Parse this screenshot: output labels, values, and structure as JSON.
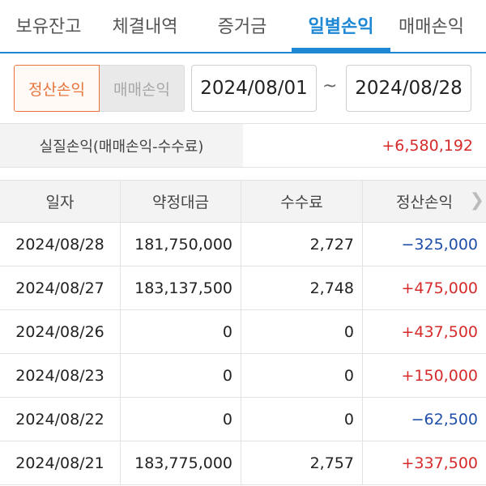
{
  "tabs": [
    {
      "label": "보유잔고",
      "active": false
    },
    {
      "label": "체결내역",
      "active": false
    },
    {
      "label": "증거금",
      "active": false
    },
    {
      "label": "일별손익",
      "active": true
    },
    {
      "label": "매매손익",
      "active": false
    }
  ],
  "filter": {
    "toggle_options": [
      "정산손익",
      "매매손익"
    ],
    "selected": "정산손익",
    "date_from": "2024/08/01",
    "separator": "~",
    "date_to": "2024/08/28"
  },
  "summary": {
    "label": "실질손익(매매손익-수수료)",
    "value": "+6,580,192"
  },
  "table": {
    "headers": [
      "일자",
      "약정대금",
      "수수료",
      "정산손익"
    ],
    "rows": [
      {
        "date": "2024/08/28",
        "amount": "181,750,000",
        "fee": "2,727",
        "pnl": "−325,000",
        "sign": "neg"
      },
      {
        "date": "2024/08/27",
        "amount": "183,137,500",
        "fee": "2,748",
        "pnl": "+475,000",
        "sign": "pos"
      },
      {
        "date": "2024/08/26",
        "amount": "0",
        "fee": "0",
        "pnl": "+437,500",
        "sign": "pos"
      },
      {
        "date": "2024/08/23",
        "amount": "0",
        "fee": "0",
        "pnl": "+150,000",
        "sign": "pos"
      },
      {
        "date": "2024/08/22",
        "amount": "0",
        "fee": "0",
        "pnl": "−62,500",
        "sign": "neg"
      },
      {
        "date": "2024/08/21",
        "amount": "183,775,000",
        "fee": "2,757",
        "pnl": "+337,500",
        "sign": "pos"
      }
    ]
  },
  "colors": {
    "accent": "#1e88d4",
    "toggle_active": "#e8743b",
    "positive": "#d62b2b",
    "negative": "#1f4fa8"
  },
  "icons": {
    "scroll_right": "chevron-right-icon"
  }
}
